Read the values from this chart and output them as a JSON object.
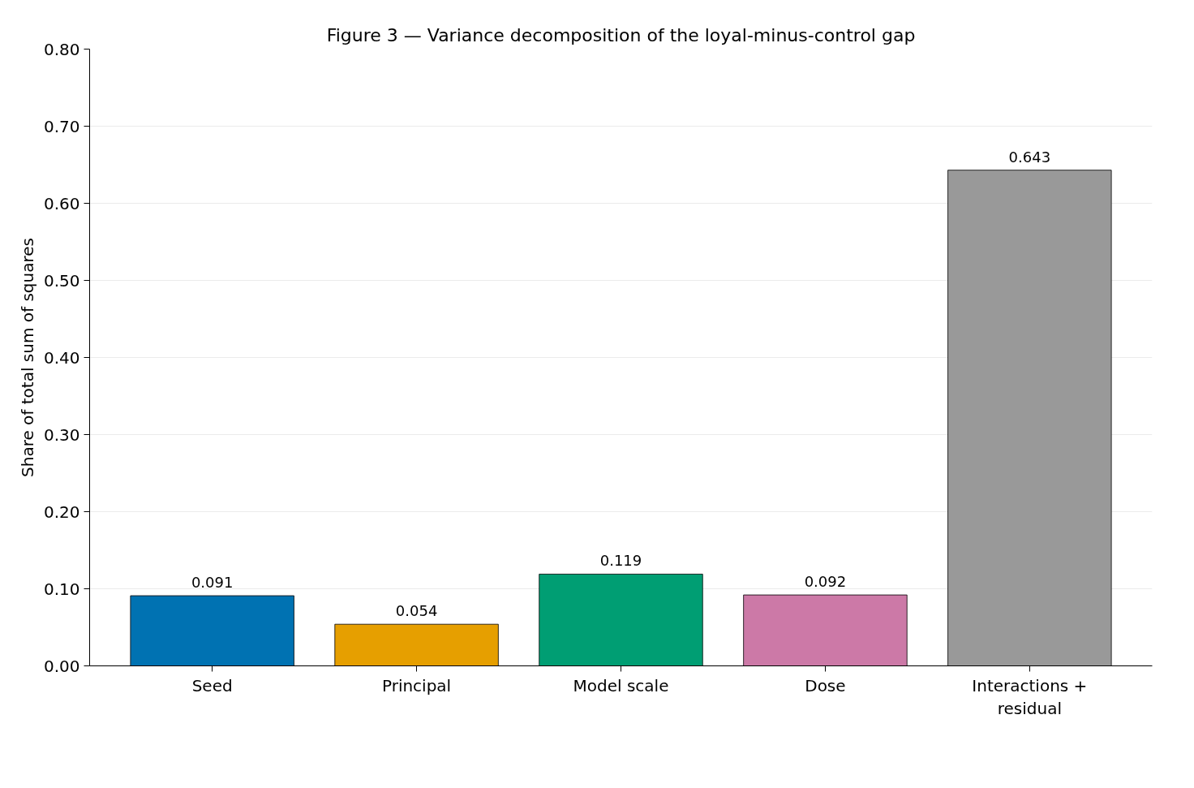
{
  "chart_data": {
    "type": "bar",
    "title": "Figure 3 — Variance decomposition of the loyal-minus-control gap",
    "ylabel": "Share of total sum of squares",
    "categories": [
      "Seed",
      "Principal",
      "Model scale",
      "Dose",
      "Interactions + residual"
    ],
    "values": [
      0.091,
      0.054,
      0.119,
      0.092,
      0.643
    ],
    "colors": [
      "#0072b2",
      "#e69f00",
      "#009e73",
      "#cc79a7",
      "#999999"
    ],
    "ylim": [
      0,
      0.8
    ],
    "yticks": [
      {
        "value": 0,
        "label": "0.00"
      },
      {
        "value": 0.1,
        "label": "0.10"
      },
      {
        "value": 0.2,
        "label": "0.20"
      },
      {
        "value": 0.3,
        "label": "0.30"
      },
      {
        "value": 0.4,
        "label": "0.40"
      },
      {
        "value": 0.5,
        "label": "0.50"
      },
      {
        "value": 0.6,
        "label": "0.60"
      },
      {
        "value": 0.7,
        "label": "0.70"
      },
      {
        "value": 0.8,
        "label": "0.80"
      }
    ],
    "data_labels": true,
    "grid": "y"
  }
}
